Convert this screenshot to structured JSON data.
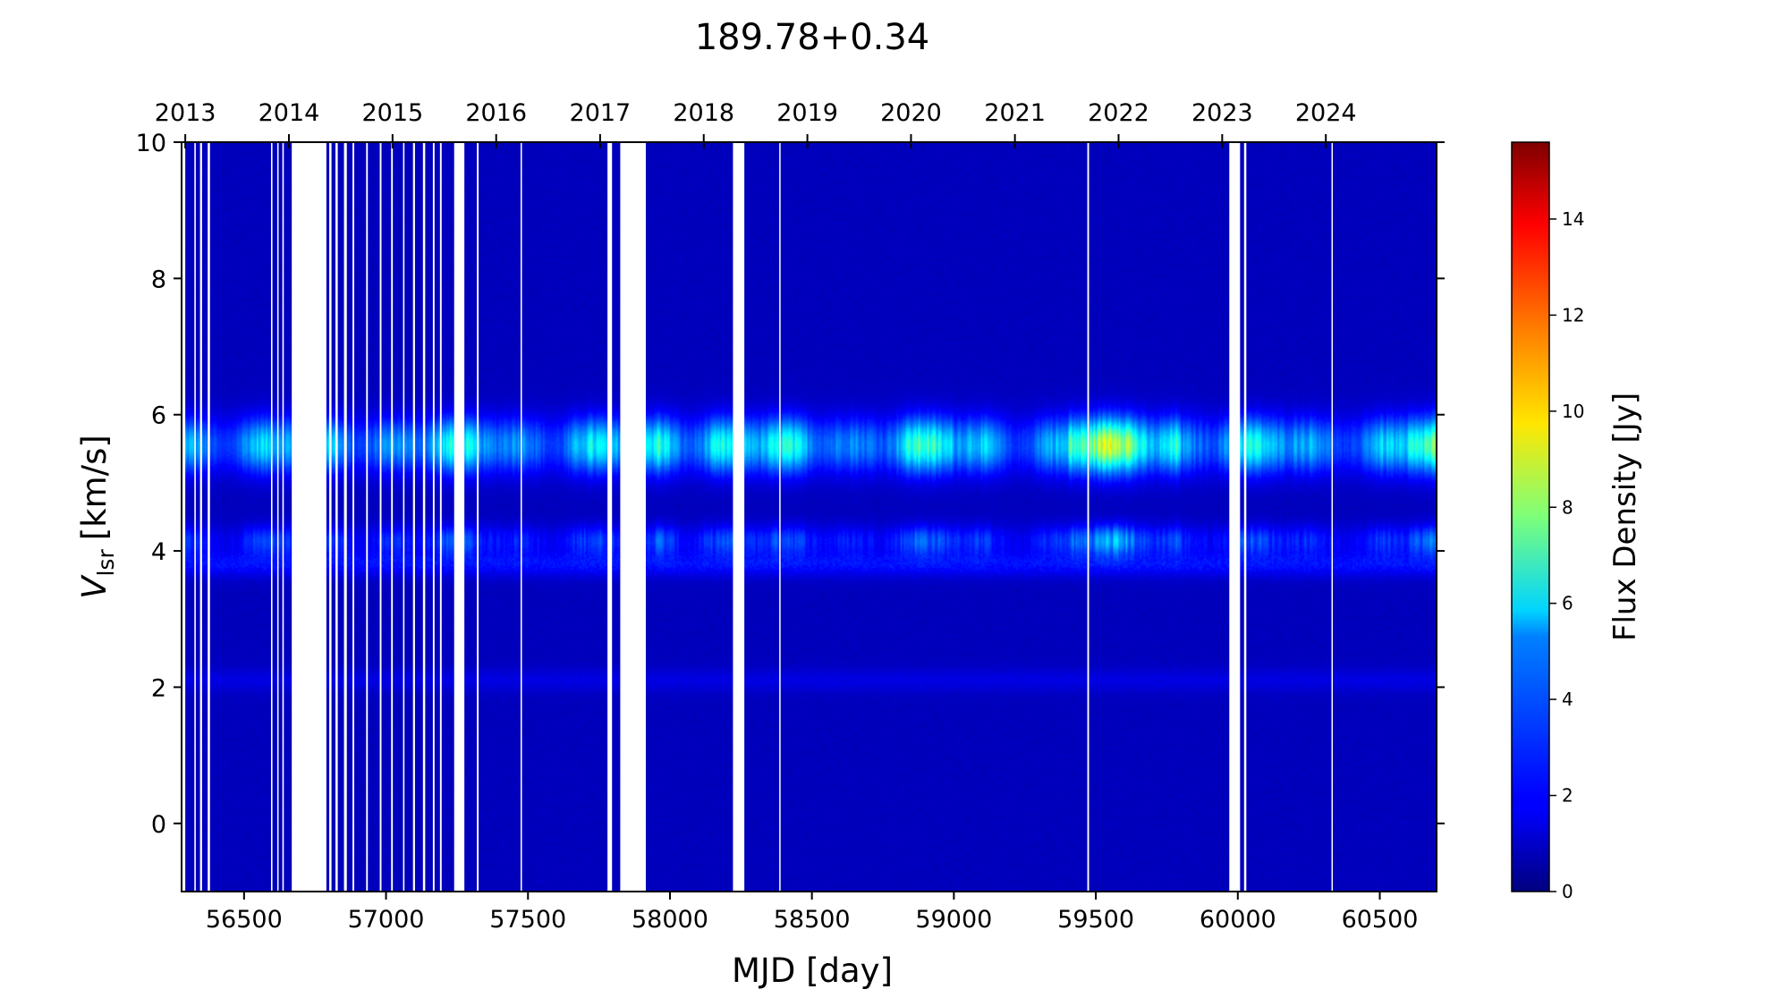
{
  "chart_data": {
    "type": "heatmap",
    "title": "189.78+0.34",
    "xlabel": "MJD [day]",
    "ylabel_main": "V",
    "ylabel_sub": "lsr",
    "ylabel_unit": "[km/s]",
    "xlim": [
      56280,
      60700
    ],
    "ylim": [
      -1,
      10
    ],
    "x_ticks": [
      56500,
      57000,
      57500,
      58000,
      58500,
      59000,
      59500,
      60000,
      60500
    ],
    "x_tick_labels": [
      "56500",
      "57000",
      "57500",
      "58000",
      "58500",
      "59000",
      "59500",
      "60000",
      "60500"
    ],
    "y_ticks": [
      0,
      2,
      4,
      6,
      8,
      10
    ],
    "y_tick_labels": [
      "0",
      "2",
      "4",
      "6",
      "8",
      "10"
    ],
    "top_axis": {
      "ticks_mjd": [
        56293,
        56658,
        57023,
        57388,
        57754,
        58119,
        58484,
        58849,
        59215,
        59580,
        59945,
        60310
      ],
      "labels": [
        "2013",
        "2014",
        "2015",
        "2016",
        "2017",
        "2018",
        "2019",
        "2020",
        "2021",
        "2022",
        "2023",
        "2024"
      ]
    },
    "colorbar": {
      "label": "Flux Density [Jy]",
      "cmap": "jet",
      "range": [
        0,
        15.6
      ],
      "ticks": [
        0,
        2,
        4,
        6,
        8,
        10,
        12,
        14
      ],
      "tick_labels": [
        "0",
        "2",
        "4",
        "6",
        "8",
        "10",
        "12",
        "14"
      ]
    },
    "data_gaps_mjd": [
      [
        56282,
        56293
      ],
      [
        56325,
        56330
      ],
      [
        56345,
        56352
      ],
      [
        56372,
        56380
      ],
      [
        56595,
        56600
      ],
      [
        56617,
        56621
      ],
      [
        56635,
        56640
      ],
      [
        56668,
        56790
      ],
      [
        56800,
        56808
      ],
      [
        56822,
        56830
      ],
      [
        56852,
        56862
      ],
      [
        56882,
        56888
      ],
      [
        56930,
        56936
      ],
      [
        56978,
        56984
      ],
      [
        57018,
        57024
      ],
      [
        57060,
        57065
      ],
      [
        57095,
        57102
      ],
      [
        57130,
        57138
      ],
      [
        57165,
        57171
      ],
      [
        57190,
        57196
      ],
      [
        57240,
        57276
      ],
      [
        57320,
        57326
      ],
      [
        57474,
        57478
      ],
      [
        57780,
        57796
      ],
      [
        57825,
        57915
      ],
      [
        58222,
        58262
      ],
      [
        58385,
        58388
      ],
      [
        59470,
        59476
      ],
      [
        59970,
        60008
      ],
      [
        60022,
        60030
      ],
      [
        60330,
        60333
      ]
    ],
    "emission_features": [
      {
        "velocity_kms": 5.55,
        "width_kms": 0.28,
        "typical_peak_jy": 4.2,
        "max_peak_jy": 11.5
      },
      {
        "velocity_kms": 4.15,
        "width_kms": 0.16,
        "typical_peak_jy": 1.8,
        "max_peak_jy": 6.5
      },
      {
        "velocity_kms": 3.8,
        "width_kms": 0.13,
        "typical_peak_jy": 1.5,
        "max_peak_jy": 2.8
      }
    ]
  }
}
